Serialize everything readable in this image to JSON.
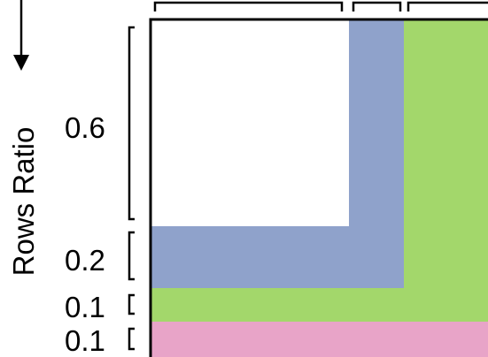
{
  "axis_title": "Rows Ratio",
  "row_ratio_labels": [
    "0.6",
    "0.2",
    "0.1",
    "0.1"
  ],
  "colors": {
    "block_white": "#ffffff",
    "block_blue": "#8fa2cb",
    "block_green": "#a3d76b",
    "block_pink": "#e8a4c8",
    "outline": "#000000"
  },
  "icons": {
    "down_arrow": "arrow-down-icon"
  }
}
